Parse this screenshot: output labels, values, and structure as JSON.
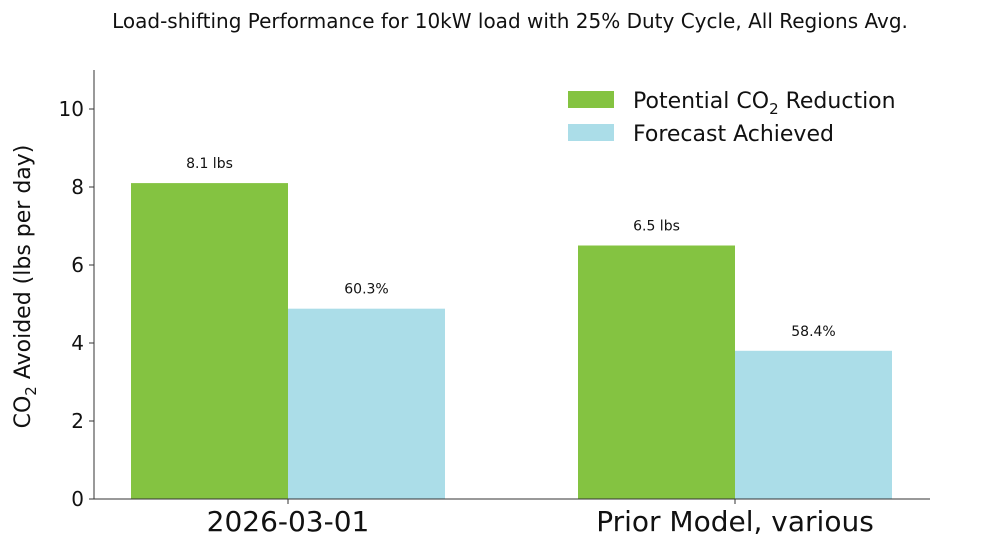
{
  "chart_data": {
    "type": "bar",
    "title": "Load-shifting Performance for 10kW load with 25% Duty Cycle, All Regions Avg.",
    "xlabel": "",
    "ylabel": "CO₂ Avoided (lbs per day)",
    "ylabel_parts": {
      "pre": "CO",
      "sub": "2",
      "post": " Avoided (lbs per day)"
    },
    "ylim": [
      0,
      11
    ],
    "yticks": [
      0,
      2,
      4,
      6,
      8,
      10
    ],
    "categories": [
      "2026-03-01",
      "Prior Model, various"
    ],
    "series": [
      {
        "name": "Potential CO₂ Reduction",
        "name_parts": {
          "pre": "Potential CO",
          "sub": "2",
          "post": " Reduction"
        },
        "color": "#84c341",
        "values": [
          8.1,
          6.5
        ],
        "labels": [
          "8.1 lbs",
          "6.5 lbs"
        ]
      },
      {
        "name": "Forecast Achieved",
        "color": "#abdde8",
        "values": [
          4.88,
          3.8
        ],
        "labels": [
          "60.3%",
          "58.4%"
        ]
      }
    ],
    "legend_position": "upper-right",
    "grid": false
  }
}
